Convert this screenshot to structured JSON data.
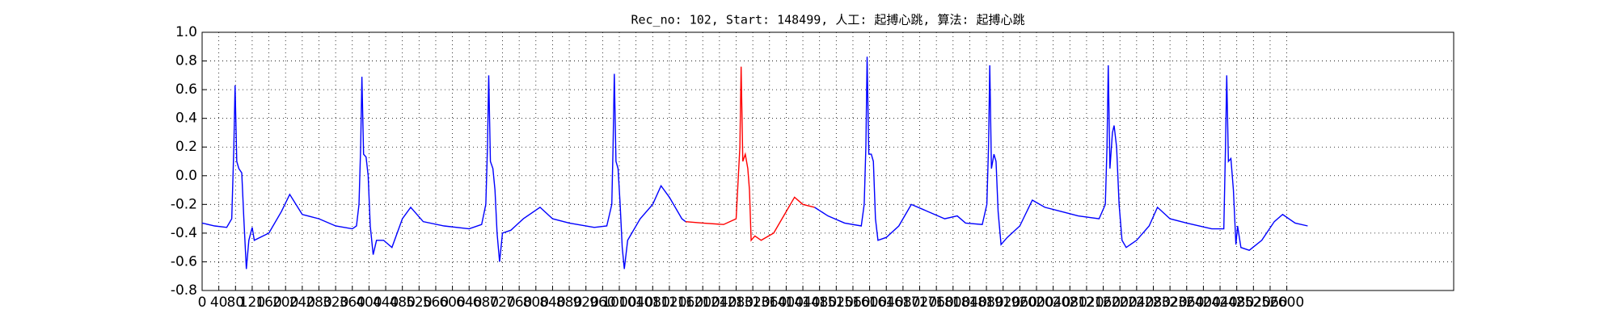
{
  "chart_data": {
    "type": "line",
    "title": "Rec_no: 102, Start: 148499, 人工: 起搏心跳, 算法: 起搏心跳",
    "xlim": [
      0,
      3000
    ],
    "ylim": [
      -0.8,
      1.0
    ],
    "grid": true,
    "xticks": [
      0,
      40,
      80,
      120,
      160,
      200,
      240,
      280,
      320,
      360,
      400,
      440,
      480,
      520,
      560,
      600,
      640,
      680,
      720,
      760,
      800,
      840,
      880,
      920,
      960,
      1000,
      1040,
      1080,
      1120,
      1160,
      1200,
      1240,
      1280,
      1320,
      1360,
      1400,
      1440,
      1480,
      1520,
      1560,
      1600,
      1640,
      1680,
      1720,
      1760,
      1800,
      1840,
      1880,
      1920,
      1960,
      2000,
      2040,
      2080,
      2120,
      2160,
      2200,
      2240,
      2280,
      2320,
      2360,
      2400,
      2440,
      2480,
      2520,
      2560,
      2600
    ],
    "yticks": [
      -0.8,
      -0.6,
      -0.4,
      -0.2,
      {
        "value": 0,
        "label": "0.0"
      },
      0.2,
      0.4,
      0.6,
      0.8,
      {
        "value": 1,
        "label": "1.0"
      }
    ],
    "series": [
      {
        "color": "#0000ff",
        "x": [
          0,
          30,
          59,
          71,
          76,
          79,
          83,
          88,
          95,
          100,
          106,
          112,
          120,
          125,
          160,
          190,
          210,
          240,
          280,
          320,
          360,
          370,
          376,
          380,
          383,
          387,
          393,
          398,
          403,
          410,
          418,
          435,
          455,
          480,
          500,
          530,
          580,
          640,
          670,
          680,
          684,
          687,
          691,
          697,
          702,
          707,
          713,
          720,
          740,
          770,
          810,
          840,
          880,
          940,
          970,
          982,
          985,
          988,
          992,
          997,
          1002,
          1007,
          1012,
          1020,
          1050,
          1080,
          1100,
          1120,
          1150,
          1159,
          1300,
          1468,
          1500,
          1540,
          1580,
          1587,
          1591,
          1594,
          1598,
          1604,
          1609,
          1614,
          1620,
          1640,
          1670,
          1700,
          1740,
          1780,
          1810,
          1830,
          1870,
          1881,
          1885,
          1888,
          1892,
          1898,
          1903,
          1908,
          1915,
          1930,
          1960,
          1990,
          2020,
          2060,
          2100,
          2150,
          2165,
          2169,
          2172,
          2176,
          2182,
          2186,
          2192,
          2198,
          2205,
          2215,
          2240,
          2270,
          2290,
          2320,
          2360,
          2420,
          2449,
          2453,
          2456,
          2460,
          2466,
          2472,
          2478,
          2482,
          2490,
          2510,
          2540,
          2570,
          2590,
          2620,
          2650
        ],
        "values": [
          -0.33,
          -0.35,
          -0.36,
          -0.3,
          0.2,
          0.63,
          0.1,
          0.05,
          0.02,
          -0.3,
          -0.65,
          -0.45,
          -0.36,
          -0.45,
          -0.4,
          -0.25,
          -0.13,
          -0.27,
          -0.3,
          -0.35,
          -0.37,
          -0.35,
          -0.2,
          0.2,
          0.69,
          0.15,
          0.13,
          0.0,
          -0.35,
          -0.55,
          -0.45,
          -0.45,
          -0.5,
          -0.3,
          -0.22,
          -0.32,
          -0.35,
          -0.37,
          -0.34,
          -0.2,
          0.2,
          0.7,
          0.1,
          0.05,
          -0.1,
          -0.4,
          -0.6,
          -0.4,
          -0.38,
          -0.3,
          -0.22,
          -0.3,
          -0.33,
          -0.36,
          -0.35,
          -0.2,
          0.2,
          0.71,
          0.1,
          0.05,
          -0.2,
          -0.5,
          -0.65,
          -0.45,
          -0.3,
          -0.2,
          -0.07,
          -0.15,
          -0.3,
          -0.32,
          null,
          -0.22,
          -0.28,
          -0.33,
          -0.35,
          -0.2,
          0.2,
          0.83,
          0.15,
          0.15,
          0.1,
          -0.3,
          -0.45,
          -0.43,
          -0.35,
          -0.2,
          -0.25,
          -0.3,
          -0.28,
          -0.33,
          -0.34,
          -0.2,
          0.2,
          0.77,
          0.05,
          0.15,
          0.1,
          -0.25,
          -0.48,
          -0.43,
          -0.35,
          -0.17,
          -0.22,
          -0.25,
          -0.28,
          -0.3,
          -0.2,
          0.2,
          0.77,
          0.05,
          0.3,
          0.35,
          0.2,
          -0.2,
          -0.45,
          -0.5,
          -0.45,
          -0.35,
          -0.22,
          -0.3,
          -0.33,
          -0.37,
          -0.37,
          0.2,
          0.7,
          0.1,
          0.12,
          -0.1,
          -0.48,
          -0.35,
          -0.5,
          -0.52,
          -0.45,
          -0.32,
          -0.27,
          -0.33,
          -0.35
        ]
      },
      {
        "color": "#ff0000",
        "x": [
          1159,
          1200,
          1250,
          1280,
          1289,
          1292,
          1296,
          1302,
          1308,
          1312,
          1316,
          1325,
          1340,
          1370,
          1390,
          1420,
          1440,
          1468
        ],
        "values": [
          -0.32,
          -0.33,
          -0.34,
          -0.3,
          0.2,
          0.76,
          0.1,
          0.15,
          0.05,
          -0.1,
          -0.45,
          -0.42,
          -0.45,
          -0.4,
          -0.3,
          -0.15,
          -0.2,
          -0.22
        ]
      }
    ]
  }
}
